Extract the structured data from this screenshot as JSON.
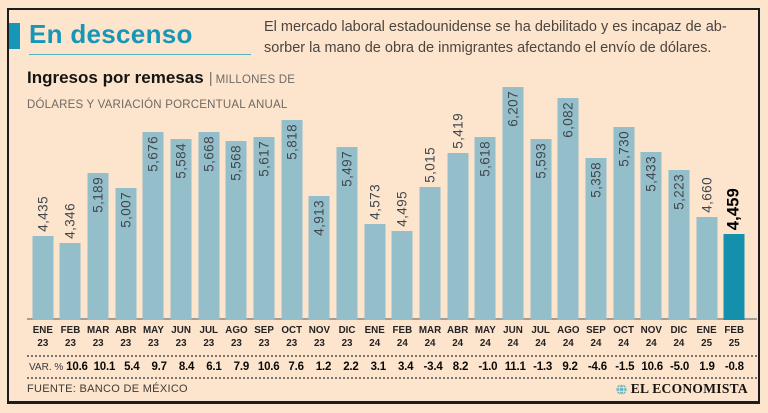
{
  "colors": {
    "background": "#fce4cd",
    "accent_teal": "#1697b7",
    "bar": "#94bec9",
    "bar_highlight": "#1590ac",
    "frame_border": "#1c1c1c"
  },
  "header": {
    "title": "En descenso",
    "intro_lines": [
      "El mercado laboral estadounidense se ha debilitado y es incapaz de ab-",
      "sorber la mano de obra de inmigrantes afectando el envío de dólares."
    ]
  },
  "subtitle": {
    "bold": "Ingresos por remesas",
    "sep": "|",
    "caps_line1": "MILLONES DE",
    "caps_line2": "DÓLARES Y VARIACIÓN PORCENTUAL ANUAL"
  },
  "chart_data": {
    "type": "bar",
    "title": "En descenso",
    "ylabel": "Millones de dólares",
    "ylim": [
      3427,
      6300
    ],
    "grid": false,
    "legend": false,
    "categories": [
      {
        "month": "ENE",
        "year": "23"
      },
      {
        "month": "FEB",
        "year": "23"
      },
      {
        "month": "MAR",
        "year": "23"
      },
      {
        "month": "ABR",
        "year": "23"
      },
      {
        "month": "MAY",
        "year": "23"
      },
      {
        "month": "JUN",
        "year": "23"
      },
      {
        "month": "JUL",
        "year": "23"
      },
      {
        "month": "AGO",
        "year": "23"
      },
      {
        "month": "SEP",
        "year": "23"
      },
      {
        "month": "OCT",
        "year": "23"
      },
      {
        "month": "NOV",
        "year": "23"
      },
      {
        "month": "DIC",
        "year": "23"
      },
      {
        "month": "ENE",
        "year": "24"
      },
      {
        "month": "FEB",
        "year": "24"
      },
      {
        "month": "MAR",
        "year": "24"
      },
      {
        "month": "ABR",
        "year": "24"
      },
      {
        "month": "MAY",
        "year": "24"
      },
      {
        "month": "JUN",
        "year": "24"
      },
      {
        "month": "JUL",
        "year": "24"
      },
      {
        "month": "AGO",
        "year": "24"
      },
      {
        "month": "SEP",
        "year": "24"
      },
      {
        "month": "OCT",
        "year": "24"
      },
      {
        "month": "NOV",
        "year": "24"
      },
      {
        "month": "DIC",
        "year": "24"
      },
      {
        "month": "ENE",
        "year": "25"
      },
      {
        "month": "FEB",
        "year": "25"
      }
    ],
    "values": [
      4435,
      4346,
      5189,
      5007,
      5676,
      5584,
      5668,
      5568,
      5617,
      5818,
      4913,
      5497,
      4573,
      4495,
      5015,
      5419,
      5618,
      6207,
      5593,
      6082,
      5358,
      5730,
      5433,
      5223,
      4660,
      4459
    ],
    "var_label": "VAR. %",
    "var_pct": [
      null,
      "10.6",
      "10.1",
      "5.4",
      "9.7",
      "8.4",
      "6.1",
      "7.9",
      "10.6",
      "7.6",
      "1.2",
      "2.2",
      "3.1",
      "3.4",
      "-3.4",
      "8.2",
      "-1.0",
      "11.1",
      "-1.3",
      "9.2",
      "-4.6",
      "-1.5",
      "10.6",
      "-5.0",
      "1.9",
      "-0.8"
    ],
    "label_placement": [
      "above",
      "above",
      "inside",
      "inside",
      "inside",
      "inside",
      "inside",
      "inside",
      "inside",
      "inside",
      "inside",
      "inside",
      "above",
      "above",
      "above",
      "above",
      "inside",
      "inside",
      "inside",
      "inside",
      "inside",
      "inside",
      "inside",
      "inside",
      "above",
      "above"
    ],
    "highlight_index": 25
  },
  "footer": {
    "source": "FUENTE: BANCO DE MÉXICO",
    "brand": "EL ECONOMISTA"
  }
}
